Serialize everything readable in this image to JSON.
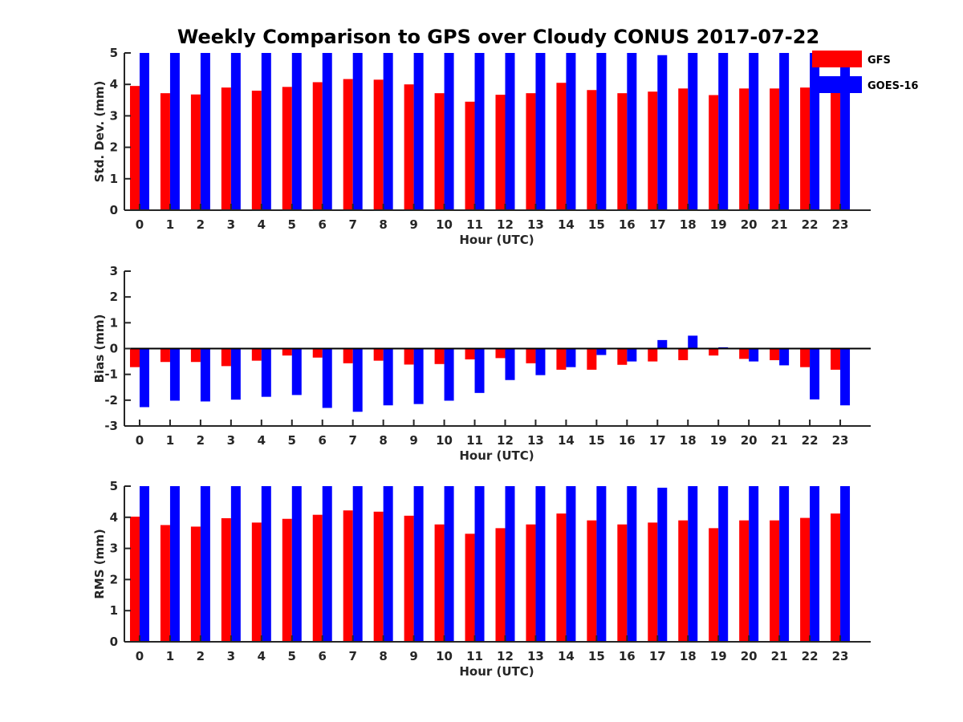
{
  "title": "Weekly Comparison to GPS over Cloudy CONUS 2017-07-22",
  "colors": {
    "GFS": "#ff0000",
    "GOES-16": "#0000ff"
  },
  "legend": {
    "placement": "top-right",
    "entries": [
      "GFS",
      "GOES-16"
    ]
  },
  "chart_data": [
    {
      "type": "bar",
      "title": "Weekly Comparison to GPS over Cloudy CONUS 2017-07-22",
      "xlabel": "Hour (UTC)",
      "ylabel": "Std. Dev. (mm)",
      "ylim": [
        0,
        5
      ],
      "yticks": [
        0,
        1,
        2,
        3,
        4,
        5
      ],
      "categories": [
        "0",
        "1",
        "2",
        "3",
        "4",
        "5",
        "6",
        "7",
        "8",
        "9",
        "10",
        "11",
        "12",
        "13",
        "14",
        "15",
        "16",
        "17",
        "18",
        "19",
        "20",
        "21",
        "22",
        "23"
      ],
      "series": [
        {
          "name": "GFS",
          "values": [
            3.95,
            3.72,
            3.68,
            3.9,
            3.8,
            3.92,
            4.07,
            4.17,
            4.15,
            4.0,
            3.72,
            3.45,
            3.67,
            3.72,
            4.05,
            3.82,
            3.72,
            3.77,
            3.87,
            3.66,
            3.87,
            3.87,
            3.9,
            3.78
          ]
        },
        {
          "name": "GOES-16",
          "values": [
            5,
            5,
            5,
            5,
            5,
            5,
            5,
            5,
            5,
            5,
            5,
            5,
            5,
            5,
            5,
            5,
            5,
            4.93,
            5,
            5,
            5,
            5,
            5,
            5
          ]
        }
      ]
    },
    {
      "type": "bar",
      "xlabel": "Hour (UTC)",
      "ylabel": "Bias (mm)",
      "ylim": [
        -3,
        3
      ],
      "yticks": [
        -3,
        -2,
        -1,
        0,
        1,
        2,
        3
      ],
      "categories": [
        "0",
        "1",
        "2",
        "3",
        "4",
        "5",
        "6",
        "7",
        "8",
        "9",
        "10",
        "11",
        "12",
        "13",
        "14",
        "15",
        "16",
        "17",
        "18",
        "19",
        "20",
        "21",
        "22",
        "23"
      ],
      "series": [
        {
          "name": "GFS",
          "values": [
            -0.72,
            -0.52,
            -0.52,
            -0.68,
            -0.47,
            -0.27,
            -0.35,
            -0.57,
            -0.47,
            -0.62,
            -0.6,
            -0.42,
            -0.37,
            -0.57,
            -0.82,
            -0.82,
            -0.63,
            -0.5,
            -0.45,
            -0.27,
            -0.4,
            -0.45,
            -0.72,
            -0.82
          ]
        },
        {
          "name": "GOES-16",
          "values": [
            -2.27,
            -2.02,
            -2.05,
            -1.98,
            -1.87,
            -1.8,
            -2.3,
            -2.45,
            -2.2,
            -2.15,
            -2.02,
            -1.72,
            -1.22,
            -1.03,
            -0.72,
            -0.25,
            -0.5,
            0.33,
            0.5,
            0.05,
            -0.5,
            -0.65,
            -1.97,
            -2.2
          ]
        }
      ]
    },
    {
      "type": "bar",
      "xlabel": "Hour (UTC)",
      "ylabel": "RMS (mm)",
      "ylim": [
        0,
        5
      ],
      "yticks": [
        0,
        1,
        2,
        3,
        4,
        5
      ],
      "categories": [
        "0",
        "1",
        "2",
        "3",
        "4",
        "5",
        "6",
        "7",
        "8",
        "9",
        "10",
        "11",
        "12",
        "13",
        "14",
        "15",
        "16",
        "17",
        "18",
        "19",
        "20",
        "21",
        "22",
        "23"
      ],
      "series": [
        {
          "name": "GFS",
          "values": [
            4.02,
            3.75,
            3.7,
            3.97,
            3.83,
            3.95,
            4.08,
            4.22,
            4.18,
            4.05,
            3.77,
            3.47,
            3.65,
            3.77,
            4.12,
            3.9,
            3.77,
            3.83,
            3.9,
            3.65,
            3.9,
            3.9,
            3.98,
            4.12
          ]
        },
        {
          "name": "GOES-16",
          "values": [
            5,
            5,
            5,
            5,
            5,
            5,
            5,
            5,
            5,
            5,
            5,
            5,
            5,
            5,
            5,
            5,
            5,
            4.95,
            5,
            5,
            5,
            5,
            5,
            5
          ]
        }
      ]
    }
  ]
}
